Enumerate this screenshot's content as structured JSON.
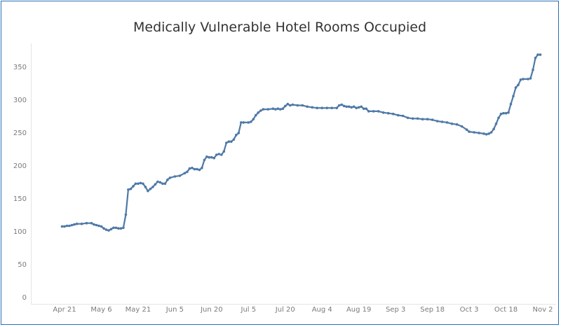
{
  "chart_data": {
    "type": "line",
    "title": "Medically Vulnerable Hotel Rooms Occupied",
    "xlabel": "",
    "ylabel": "",
    "ylim": [
      0,
      375
    ],
    "yticks": [
      0,
      50,
      100,
      150,
      200,
      250,
      300,
      350
    ],
    "xticks": [
      {
        "label": "Apr 21",
        "date": "2020-04-21"
      },
      {
        "label": "May 6",
        "date": "2020-05-06"
      },
      {
        "label": "May 21",
        "date": "2020-05-21"
      },
      {
        "label": "Jun 5",
        "date": "2020-06-05"
      },
      {
        "label": "Jun 20",
        "date": "2020-06-20"
      },
      {
        "label": "Jul 5",
        "date": "2020-07-05"
      },
      {
        "label": "Jul 20",
        "date": "2020-07-20"
      },
      {
        "label": "Aug 4",
        "date": "2020-08-04"
      },
      {
        "label": "Aug 19",
        "date": "2020-08-19"
      },
      {
        "label": "Sep 3",
        "date": "2020-09-03"
      },
      {
        "label": "Sep 18",
        "date": "2020-09-18"
      },
      {
        "label": "Oct 3",
        "date": "2020-10-03"
      },
      {
        "label": "Oct 18",
        "date": "2020-10-18"
      },
      {
        "label": "Nov 2",
        "date": "2020-11-02"
      }
    ],
    "grid": false,
    "series": [
      {
        "color": "#4e79a7",
        "points": [
          [
            "2020-04-20",
            107
          ],
          [
            "2020-04-21",
            107
          ],
          [
            "2020-04-22",
            108
          ],
          [
            "2020-04-23",
            108
          ],
          [
            "2020-04-24",
            109
          ],
          [
            "2020-04-25",
            110
          ],
          [
            "2020-04-26",
            111
          ],
          [
            "2020-04-28",
            111
          ],
          [
            "2020-04-30",
            112
          ],
          [
            "2020-05-02",
            112
          ],
          [
            "2020-05-03",
            110
          ],
          [
            "2020-05-04",
            109
          ],
          [
            "2020-05-05",
            108
          ],
          [
            "2020-05-06",
            107
          ],
          [
            "2020-05-07",
            104
          ],
          [
            "2020-05-08",
            102
          ],
          [
            "2020-05-09",
            101
          ],
          [
            "2020-05-10",
            103
          ],
          [
            "2020-05-11",
            105
          ],
          [
            "2020-05-12",
            105
          ],
          [
            "2020-05-13",
            104
          ],
          [
            "2020-05-14",
            104
          ],
          [
            "2020-05-15",
            105
          ],
          [
            "2020-05-16",
            125
          ],
          [
            "2020-05-17",
            163
          ],
          [
            "2020-05-18",
            164
          ],
          [
            "2020-05-19",
            168
          ],
          [
            "2020-05-20",
            172
          ],
          [
            "2020-05-21",
            172
          ],
          [
            "2020-05-22",
            173
          ],
          [
            "2020-05-23",
            172
          ],
          [
            "2020-05-24",
            167
          ],
          [
            "2020-05-25",
            161
          ],
          [
            "2020-05-26",
            164
          ],
          [
            "2020-05-27",
            167
          ],
          [
            "2020-05-28",
            171
          ],
          [
            "2020-05-29",
            175
          ],
          [
            "2020-05-30",
            174
          ],
          [
            "2020-05-31",
            172
          ],
          [
            "2020-06-01",
            172
          ],
          [
            "2020-06-02",
            178
          ],
          [
            "2020-06-03",
            181
          ],
          [
            "2020-06-05",
            183
          ],
          [
            "2020-06-07",
            184
          ],
          [
            "2020-06-09",
            188
          ],
          [
            "2020-06-10",
            190
          ],
          [
            "2020-06-11",
            195
          ],
          [
            "2020-06-12",
            196
          ],
          [
            "2020-06-13",
            194
          ],
          [
            "2020-06-14",
            194
          ],
          [
            "2020-06-15",
            193
          ],
          [
            "2020-06-16",
            196
          ],
          [
            "2020-06-17",
            208
          ],
          [
            "2020-06-18",
            213
          ],
          [
            "2020-06-19",
            212
          ],
          [
            "2020-06-20",
            212
          ],
          [
            "2020-06-21",
            211
          ],
          [
            "2020-06-22",
            216
          ],
          [
            "2020-06-23",
            217
          ],
          [
            "2020-06-24",
            216
          ],
          [
            "2020-06-25",
            221
          ],
          [
            "2020-06-26",
            234
          ],
          [
            "2020-06-27",
            236
          ],
          [
            "2020-06-28",
            236
          ],
          [
            "2020-06-29",
            239
          ],
          [
            "2020-06-30",
            246
          ],
          [
            "2020-07-01",
            249
          ],
          [
            "2020-07-02",
            265
          ],
          [
            "2020-07-03",
            265
          ],
          [
            "2020-07-05",
            265
          ],
          [
            "2020-07-06",
            266
          ],
          [
            "2020-07-07",
            270
          ],
          [
            "2020-07-08",
            276
          ],
          [
            "2020-07-09",
            280
          ],
          [
            "2020-07-10",
            283
          ],
          [
            "2020-07-11",
            285
          ],
          [
            "2020-07-13",
            285
          ],
          [
            "2020-07-15",
            286
          ],
          [
            "2020-07-16",
            285
          ],
          [
            "2020-07-17",
            286
          ],
          [
            "2020-07-18",
            285
          ],
          [
            "2020-07-19",
            286
          ],
          [
            "2020-07-20",
            290
          ],
          [
            "2020-07-21",
            293
          ],
          [
            "2020-07-22",
            291
          ],
          [
            "2020-07-23",
            292
          ],
          [
            "2020-07-25",
            291
          ],
          [
            "2020-07-27",
            291
          ],
          [
            "2020-07-29",
            289
          ],
          [
            "2020-07-31",
            288
          ],
          [
            "2020-08-02",
            287
          ],
          [
            "2020-08-04",
            287
          ],
          [
            "2020-08-06",
            287
          ],
          [
            "2020-08-08",
            287
          ],
          [
            "2020-08-10",
            287
          ],
          [
            "2020-08-11",
            291
          ],
          [
            "2020-08-12",
            292
          ],
          [
            "2020-08-13",
            290
          ],
          [
            "2020-08-14",
            289
          ],
          [
            "2020-08-15",
            289
          ],
          [
            "2020-08-16",
            288
          ],
          [
            "2020-08-17",
            289
          ],
          [
            "2020-08-18",
            287
          ],
          [
            "2020-08-19",
            288
          ],
          [
            "2020-08-20",
            289
          ],
          [
            "2020-08-21",
            286
          ],
          [
            "2020-08-22",
            286
          ],
          [
            "2020-08-23",
            282
          ],
          [
            "2020-08-25",
            282
          ],
          [
            "2020-08-27",
            282
          ],
          [
            "2020-08-29",
            280
          ],
          [
            "2020-08-31",
            279
          ],
          [
            "2020-09-02",
            278
          ],
          [
            "2020-09-04",
            276
          ],
          [
            "2020-09-06",
            275
          ],
          [
            "2020-09-08",
            272
          ],
          [
            "2020-09-10",
            271
          ],
          [
            "2020-09-12",
            271
          ],
          [
            "2020-09-14",
            270
          ],
          [
            "2020-09-16",
            270
          ],
          [
            "2020-09-18",
            269
          ],
          [
            "2020-09-20",
            267
          ],
          [
            "2020-09-22",
            266
          ],
          [
            "2020-09-24",
            265
          ],
          [
            "2020-09-26",
            263
          ],
          [
            "2020-09-28",
            262
          ],
          [
            "2020-09-30",
            259
          ],
          [
            "2020-10-02",
            254
          ],
          [
            "2020-10-03",
            251
          ],
          [
            "2020-10-05",
            250
          ],
          [
            "2020-10-07",
            249
          ],
          [
            "2020-10-09",
            248
          ],
          [
            "2020-10-10",
            247
          ],
          [
            "2020-10-11",
            248
          ],
          [
            "2020-10-12",
            250
          ],
          [
            "2020-10-13",
            255
          ],
          [
            "2020-10-14",
            263
          ],
          [
            "2020-10-15",
            272
          ],
          [
            "2020-10-16",
            278
          ],
          [
            "2020-10-17",
            279
          ],
          [
            "2020-10-18",
            279
          ],
          [
            "2020-10-19",
            280
          ],
          [
            "2020-10-20",
            293
          ],
          [
            "2020-10-21",
            305
          ],
          [
            "2020-10-22",
            318
          ],
          [
            "2020-10-23",
            322
          ],
          [
            "2020-10-24",
            330
          ],
          [
            "2020-10-25",
            331
          ],
          [
            "2020-10-27",
            331
          ],
          [
            "2020-10-28",
            332
          ],
          [
            "2020-10-29",
            345
          ],
          [
            "2020-10-30",
            363
          ],
          [
            "2020-10-31",
            368
          ],
          [
            "2020-11-01",
            368
          ]
        ]
      }
    ]
  }
}
